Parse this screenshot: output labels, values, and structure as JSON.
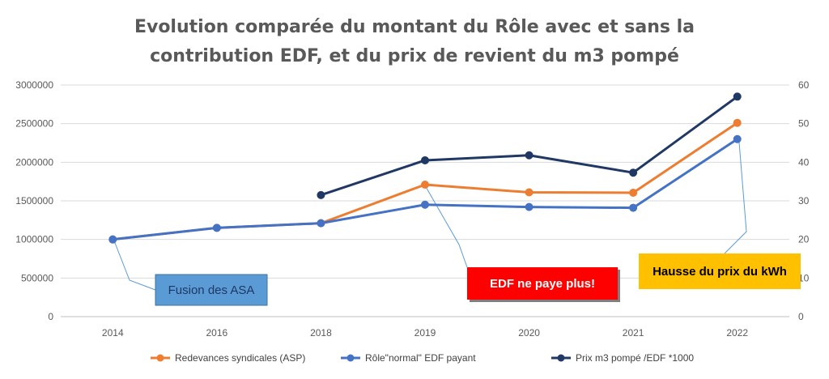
{
  "chart_data": {
    "type": "line",
    "title_line1": "Evolution comparée du montant du Rôle avec et sans la",
    "title_line2": "contribution EDF, et du prix de revient du m3 pompé",
    "categories": [
      "2014",
      "2016",
      "2018",
      "2019",
      "2020",
      "2021",
      "2022"
    ],
    "y_left": {
      "min": 0,
      "max": 3000000,
      "ticks": [
        "0",
        "500000",
        "1000000",
        "1500000",
        "2000000",
        "2500000",
        "3000000"
      ]
    },
    "y_right": {
      "min": 0,
      "max": 60,
      "ticks": [
        "0",
        "10",
        "20",
        "30",
        "40",
        "50",
        "60"
      ]
    },
    "grid": true,
    "legend_position": "bottom",
    "series": [
      {
        "name": "Redevances syndicales (ASP)",
        "axis": "left",
        "color": "#ED7D31",
        "values": [
          1000000,
          1150000,
          1210000,
          1710000,
          1610000,
          1605000,
          2510000
        ]
      },
      {
        "name": "Rôle\"normal\" EDF payant",
        "axis": "left",
        "color": "#4472C4",
        "values": [
          1000000,
          1150000,
          1210000,
          1450000,
          1420000,
          1410000,
          2300000
        ]
      },
      {
        "name": "Prix m3 pompé /EDF *1000",
        "axis": "right",
        "color": "#203864",
        "values": [
          null,
          null,
          31.5,
          40.5,
          41.8,
          37.3,
          57
        ]
      }
    ],
    "annotations": [
      {
        "text": "Fusion des ASA",
        "bg": "#5B9BD5",
        "color": "#1F3864"
      },
      {
        "text": "EDF ne paye plus!",
        "bg": "#FF0000",
        "color": "#FFFFFF"
      },
      {
        "text": "Hausse du prix du kWh",
        "bg": "#FFC000",
        "color": "#000000"
      }
    ]
  }
}
